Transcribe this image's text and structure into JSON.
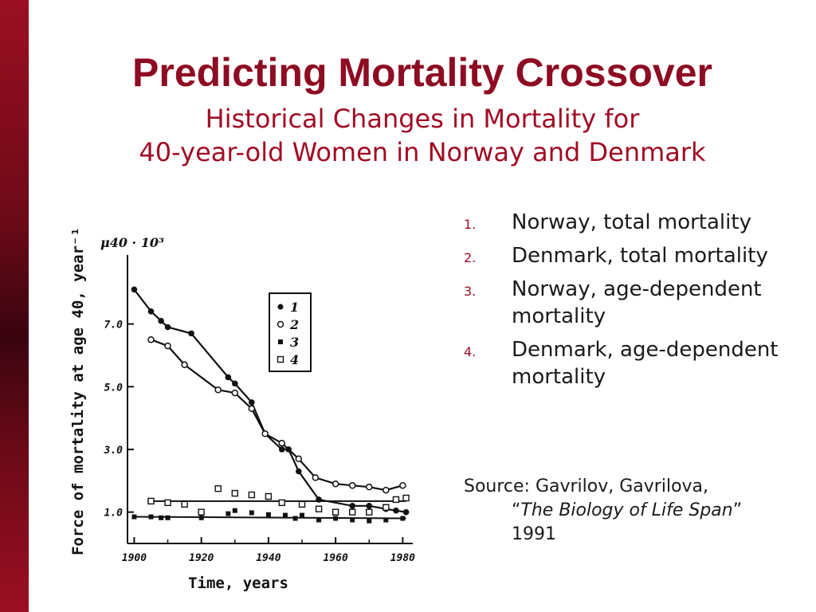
{
  "slide": {
    "title": "Predicting Mortality Crossover",
    "subtitle_line1": "Historical Changes in Mortality for",
    "subtitle_line2": "40-year-old Women in Norway and Denmark"
  },
  "legend_items": [
    {
      "num": "1.",
      "text": "Norway, total mortality"
    },
    {
      "num": "2.",
      "text": "Denmark, total mortality"
    },
    {
      "num": "3.",
      "text": "Norway, age-dependent mortality"
    },
    {
      "num": "4.",
      "text": "Denmark, age-dependent mortality"
    }
  ],
  "source": {
    "prefix": "Source: Gavrilov, Gavrilova,",
    "open_quote": "“",
    "book": "The Biology of Life Span",
    "close_quote": "”",
    "year": "1991"
  },
  "colors": {
    "accent": "#8e0c22",
    "bar": "#6e0a18",
    "ink": "#111111"
  },
  "chart_data": {
    "type": "line",
    "y_unit_label": "μ40 · 10³",
    "xlabel": "Time, years",
    "ylabel": "Force of mortality at age 40, year⁻¹",
    "xlim": [
      1898,
      1983
    ],
    "ylim": [
      0,
      9.2
    ],
    "x_ticks": [
      1900,
      1920,
      1940,
      1960,
      1980
    ],
    "y_ticks": [
      1.0,
      3.0,
      5.0,
      7.0
    ],
    "y_tick_labels": [
      "1.0",
      "3.0",
      "5.0",
      "7.0"
    ],
    "grid": false,
    "legend_position": "top-right",
    "series": [
      {
        "name": "1",
        "marker": "filled-circle",
        "x": [
          1900,
          1905,
          1908,
          1910,
          1917,
          1928,
          1930,
          1935,
          1939,
          1944,
          1946,
          1949,
          1955,
          1965,
          1970,
          1975,
          1978,
          1981
        ],
        "y": [
          8.1,
          7.4,
          7.1,
          6.9,
          6.7,
          5.3,
          5.1,
          4.5,
          3.5,
          3.0,
          3.0,
          2.3,
          1.4,
          1.2,
          1.2,
          1.1,
          1.05,
          1.0
        ]
      },
      {
        "name": "2",
        "marker": "open-circle",
        "x": [
          1905,
          1910,
          1915,
          1925,
          1930,
          1935,
          1939,
          1944,
          1949,
          1954,
          1960,
          1965,
          1970,
          1975,
          1980
        ],
        "y": [
          6.5,
          6.3,
          5.7,
          4.9,
          4.8,
          4.3,
          3.5,
          3.2,
          2.7,
          2.1,
          1.9,
          1.85,
          1.8,
          1.7,
          1.85
        ]
      },
      {
        "name": "3",
        "marker": "filled-square",
        "fit_line": {
          "x": [
            1900,
            1981
          ],
          "y": [
            0.85,
            0.8
          ]
        },
        "x": [
          1900,
          1905,
          1908,
          1910,
          1920,
          1928,
          1930,
          1935,
          1940,
          1945,
          1948,
          1950,
          1955,
          1960,
          1965,
          1970,
          1975,
          1980
        ],
        "y": [
          0.85,
          0.85,
          0.82,
          0.82,
          0.82,
          0.95,
          1.05,
          0.98,
          0.92,
          0.9,
          0.8,
          0.9,
          0.75,
          0.8,
          0.75,
          0.72,
          0.75,
          0.8
        ]
      },
      {
        "name": "4",
        "marker": "open-square",
        "fit_line": {
          "x": [
            1904,
            1981
          ],
          "y": [
            1.35,
            1.35
          ]
        },
        "x": [
          1905,
          1910,
          1915,
          1920,
          1925,
          1930,
          1935,
          1940,
          1944,
          1950,
          1955,
          1960,
          1965,
          1970,
          1975,
          1978,
          1981
        ],
        "y": [
          1.35,
          1.3,
          1.25,
          1.0,
          1.75,
          1.6,
          1.55,
          1.5,
          1.3,
          1.25,
          1.1,
          1.0,
          1.0,
          1.0,
          1.15,
          1.4,
          1.45
        ]
      }
    ]
  }
}
